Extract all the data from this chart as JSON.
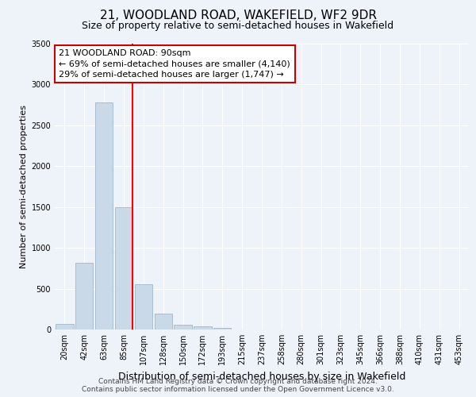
{
  "title": "21, WOODLAND ROAD, WAKEFIELD, WF2 9DR",
  "subtitle": "Size of property relative to semi-detached houses in Wakefield",
  "bar_labels": [
    "20sqm",
    "42sqm",
    "63sqm",
    "85sqm",
    "107sqm",
    "128sqm",
    "150sqm",
    "172sqm",
    "193sqm",
    "215sqm",
    "237sqm",
    "258sqm",
    "280sqm",
    "301sqm",
    "323sqm",
    "345sqm",
    "366sqm",
    "388sqm",
    "410sqm",
    "431sqm",
    "453sqm"
  ],
  "bar_values": [
    65,
    820,
    2780,
    1500,
    550,
    190,
    60,
    40,
    20,
    0,
    0,
    0,
    0,
    0,
    0,
    0,
    0,
    0,
    0,
    0,
    0
  ],
  "bar_color": "#c9d9e8",
  "bar_edge_color": "#a0b8cc",
  "ylim": [
    0,
    3500
  ],
  "yticks": [
    0,
    500,
    1000,
    1500,
    2000,
    2500,
    3000,
    3500
  ],
  "ylabel": "Number of semi-detached properties",
  "xlabel": "Distribution of semi-detached houses by size in Wakefield",
  "annotation_line1": "21 WOODLAND ROAD: 90sqm",
  "annotation_line2": "← 69% of semi-detached houses are smaller (4,140)",
  "annotation_line3": "29% of semi-detached houses are larger (1,747) →",
  "footer_line1": "Contains HM Land Registry data © Crown copyright and database right 2024.",
  "footer_line2": "Contains public sector information licensed under the Open Government Licence v3.0.",
  "background_color": "#eef3f9",
  "plot_bg_color": "#eef3f9",
  "grid_color": "#ffffff",
  "title_fontsize": 11,
  "subtitle_fontsize": 9,
  "ylabel_fontsize": 8,
  "xlabel_fontsize": 9,
  "tick_fontsize": 7,
  "footer_fontsize": 6.5,
  "ann_fontsize": 8
}
